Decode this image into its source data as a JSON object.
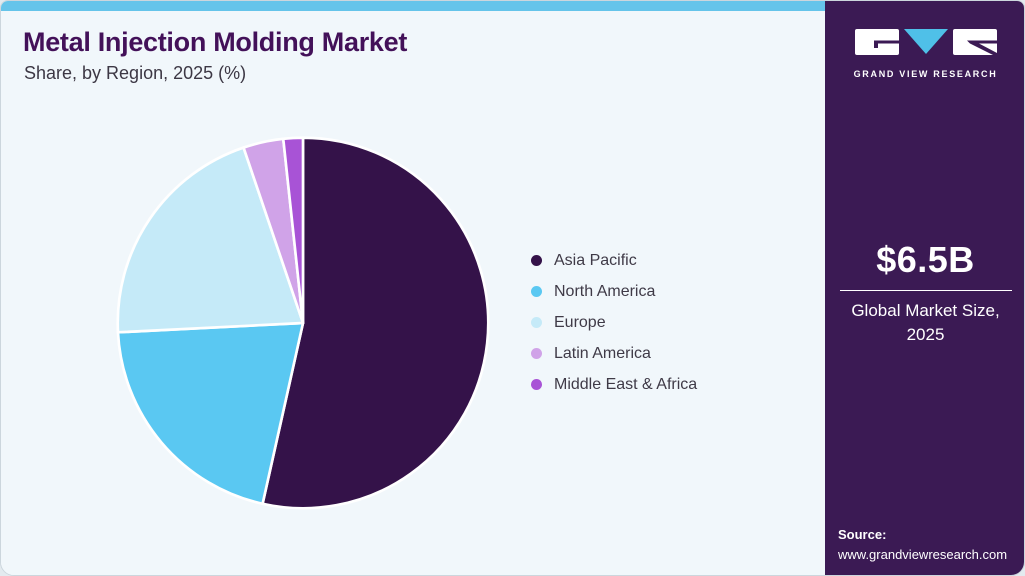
{
  "header": {
    "title": "Metal Injection Molding Market",
    "subtitle": "Share, by Region, 2025 (%)"
  },
  "chart_data": {
    "type": "pie",
    "title": "Metal Injection Molding Market Share, by Region, 2025 (%)",
    "labels": [
      "Asia Pacific",
      "North America",
      "Europe",
      "Latin America",
      "Middle East & Africa"
    ],
    "values": [
      53.5,
      20.7,
      20.6,
      3.5,
      1.7
    ],
    "unit": "%",
    "colors": [
      "#341249",
      "#5ac8f2",
      "#c5eaf8",
      "#d0a3e8",
      "#a853d6"
    ],
    "start_angle_deg": 0,
    "direction": "clockwise",
    "legend_position": "right",
    "slice_gap_color": "#ffffff"
  },
  "legend": {
    "items": [
      {
        "label": "Asia Pacific",
        "color": "#341249"
      },
      {
        "label": "North America",
        "color": "#5ac8f2"
      },
      {
        "label": "Europe",
        "color": "#c5eaf8"
      },
      {
        "label": "Latin America",
        "color": "#d0a3e8"
      },
      {
        "label": "Middle East & Africa",
        "color": "#a853d6"
      }
    ]
  },
  "sidebar": {
    "logo_text": "GRAND VIEW RESEARCH",
    "market_size_value": "$6.5B",
    "market_size_label": "Global Market Size, 2025",
    "source_label": "Source:",
    "source_url": "www.grandviewresearch.com"
  },
  "colors": {
    "topbar": "#65c4ea",
    "main_background": "#f1f7fb",
    "sidebar_background": "#3b1a54",
    "title_text": "#431159",
    "logo_triangle": "#4fc0e8"
  }
}
